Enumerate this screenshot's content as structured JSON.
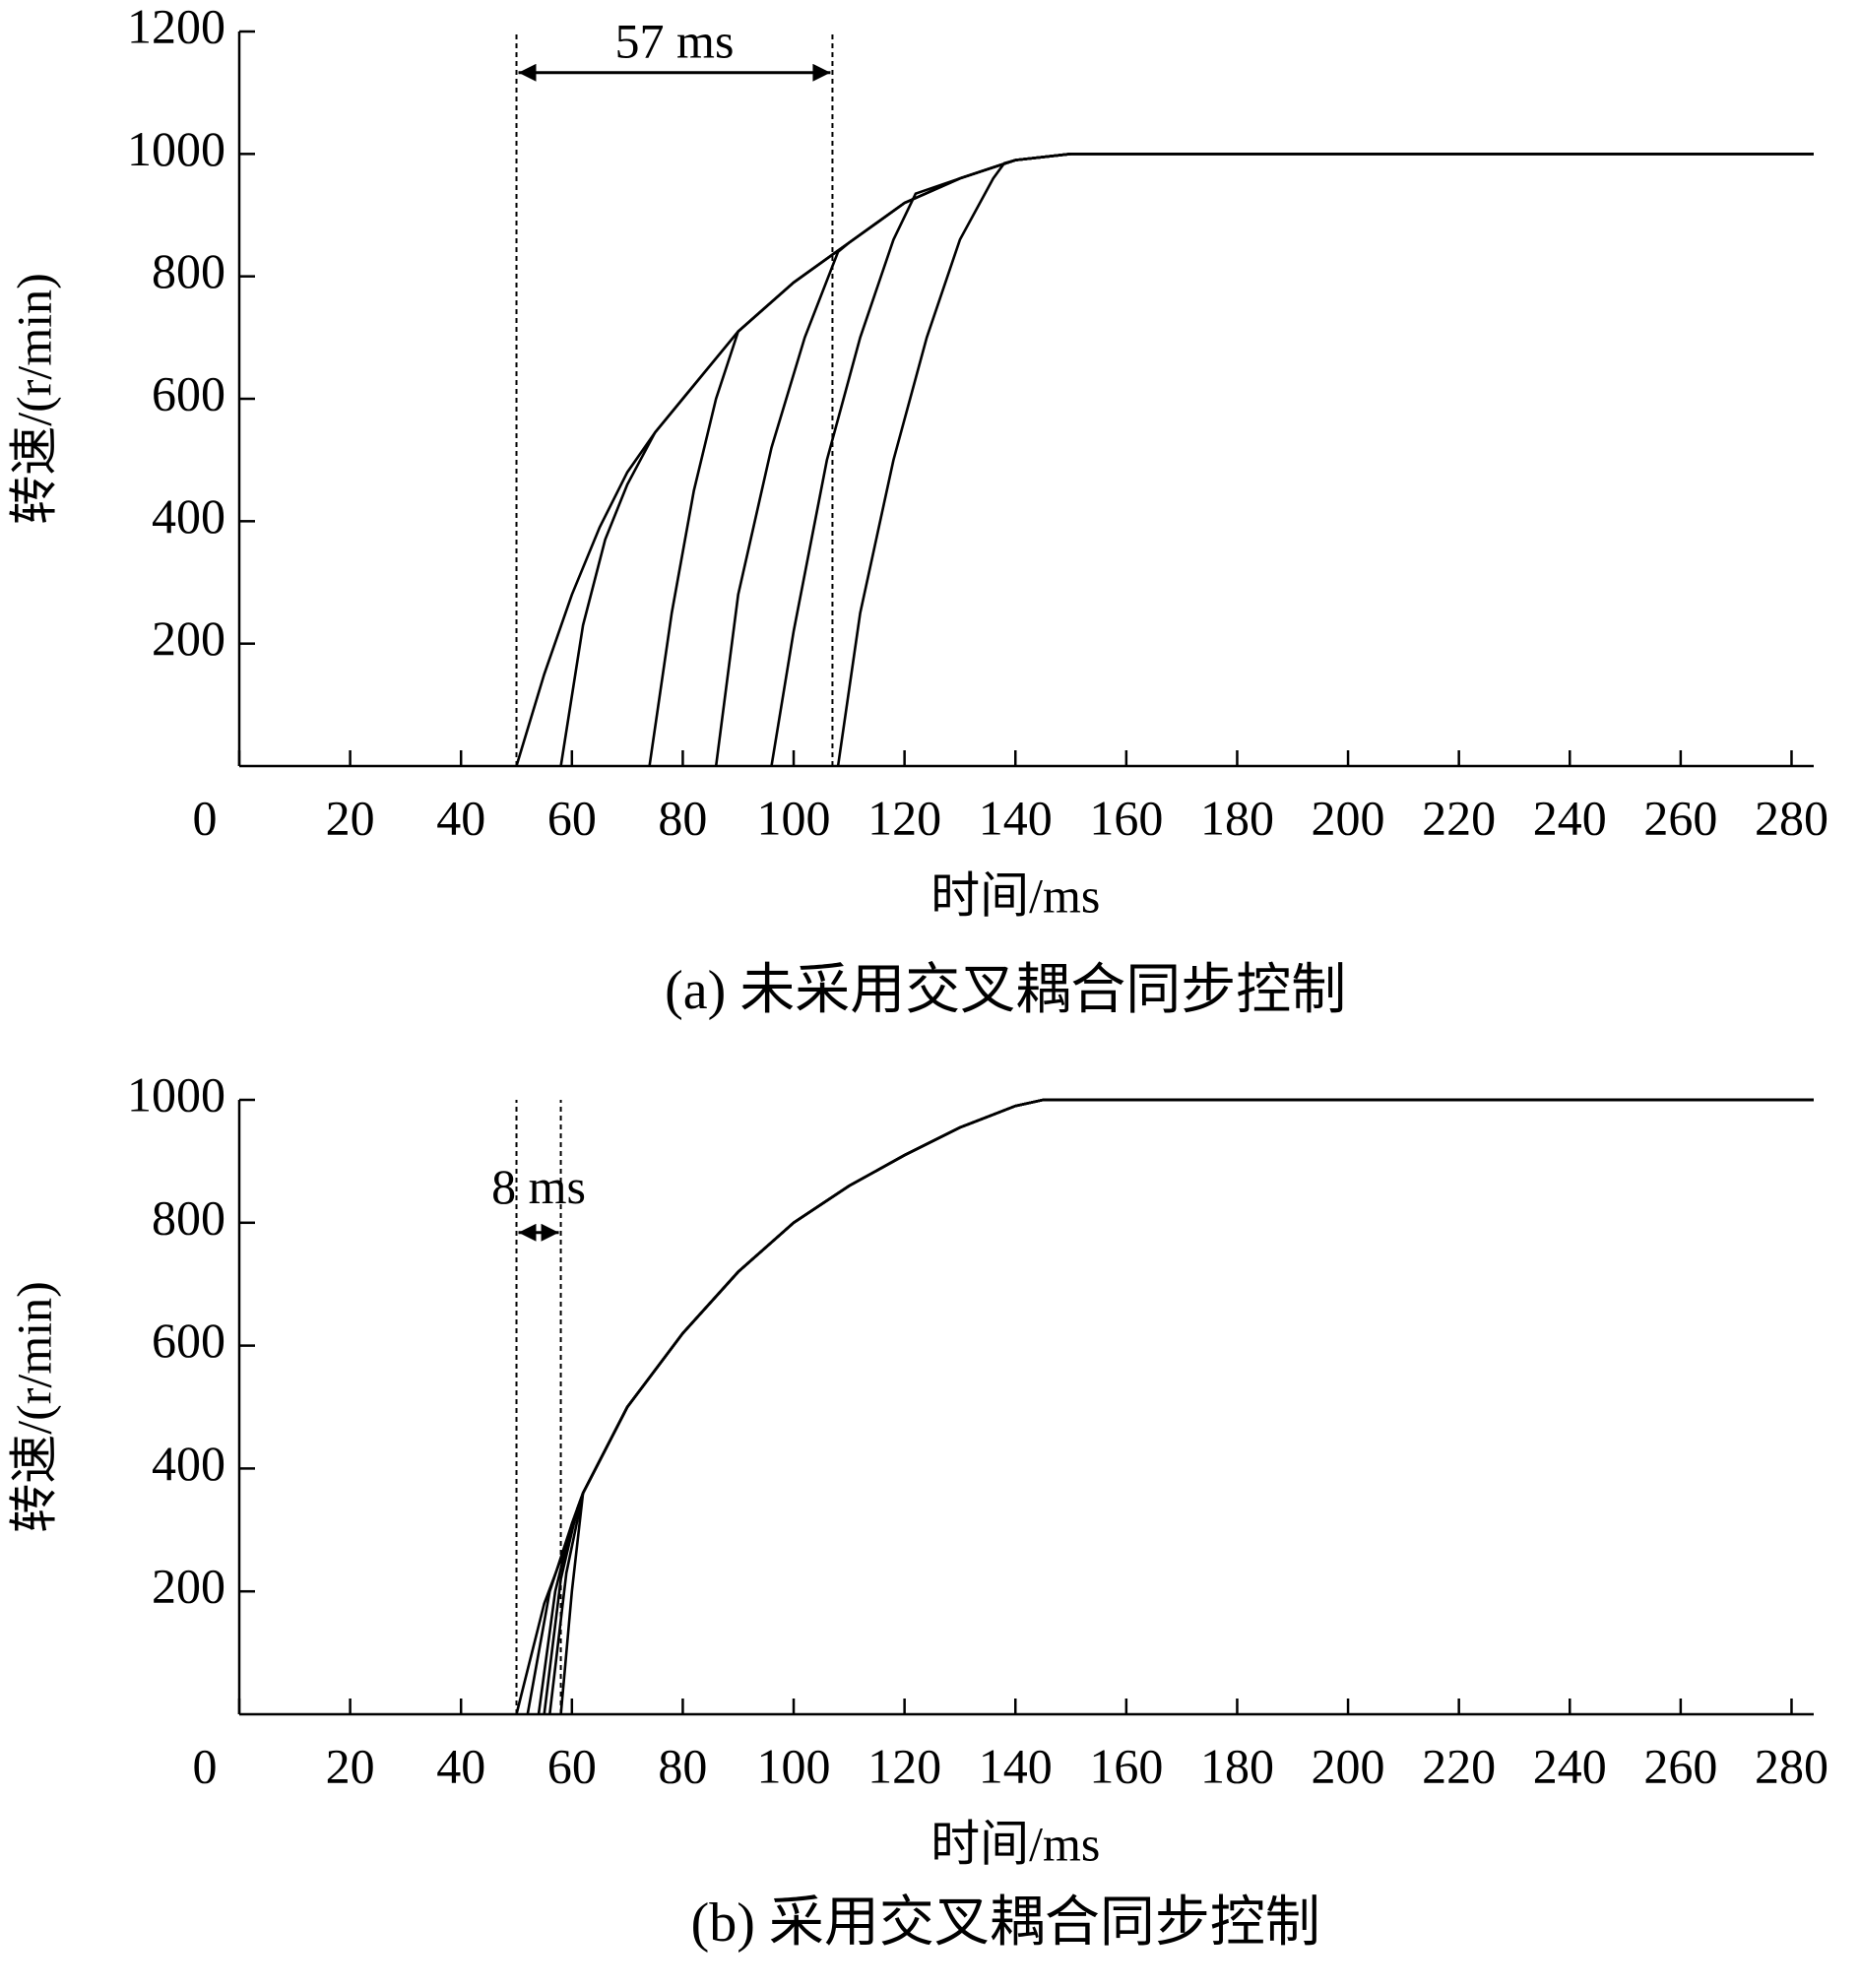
{
  "chart_data": [
    {
      "type": "line",
      "caption": "(a)  未采用交叉耦合同步控制",
      "xlabel": "时间/ms",
      "ylabel": "转速/(r/min)",
      "xlim": [
        0,
        284
      ],
      "ylim": [
        0,
        1200
      ],
      "xticks": [
        0,
        20,
        40,
        60,
        80,
        100,
        120,
        140,
        160,
        180,
        200,
        220,
        240,
        260,
        280
      ],
      "yticks": [
        200,
        400,
        600,
        800,
        1000,
        1200
      ],
      "markers": [
        50,
        107
      ],
      "annotation": "57 ms",
      "series": [
        {
          "color": "#000000",
          "x": [
            50,
            55,
            60,
            65,
            70,
            75,
            80,
            90,
            100,
            110,
            120,
            130,
            140,
            150,
            284
          ],
          "values": [
            0,
            150,
            280,
            390,
            480,
            545,
            600,
            710,
            790,
            855,
            920,
            960,
            990,
            1000,
            1000
          ]
        },
        {
          "color": "#000000",
          "x": [
            58,
            62,
            66,
            70,
            75,
            80,
            90,
            100,
            110,
            120,
            130,
            140,
            150,
            284
          ],
          "values": [
            0,
            230,
            370,
            460,
            545,
            600,
            710,
            790,
            855,
            920,
            960,
            990,
            1000,
            1000
          ]
        },
        {
          "color": "#000000",
          "x": [
            74,
            78,
            82,
            86,
            90,
            100,
            110,
            120,
            130,
            140,
            150,
            284
          ],
          "values": [
            0,
            250,
            450,
            600,
            710,
            790,
            855,
            920,
            960,
            990,
            1000,
            1000
          ]
        },
        {
          "color": "#000000",
          "x": [
            86,
            90,
            96,
            102,
            108,
            110,
            120,
            130,
            140,
            150,
            284
          ],
          "values": [
            0,
            280,
            520,
            700,
            840,
            855,
            920,
            960,
            990,
            1000,
            1000
          ]
        },
        {
          "color": "#000000",
          "x": [
            96,
            100,
            106,
            112,
            118,
            122,
            130,
            140,
            150,
            284
          ],
          "values": [
            0,
            220,
            500,
            700,
            860,
            935,
            960,
            990,
            1000,
            1000
          ]
        },
        {
          "color": "#000000",
          "x": [
            108,
            112,
            118,
            124,
            130,
            136,
            138,
            140,
            150,
            284
          ],
          "values": [
            0,
            250,
            500,
            700,
            860,
            960,
            985,
            990,
            1000,
            1000
          ]
        }
      ]
    },
    {
      "type": "line",
      "caption": "(b)  采用交叉耦合同步控制",
      "xlabel": "时间/ms",
      "ylabel": "转速/(r/min)",
      "xlim": [
        0,
        284
      ],
      "ylim": [
        0,
        1000
      ],
      "xticks": [
        0,
        20,
        40,
        60,
        80,
        100,
        120,
        140,
        160,
        180,
        200,
        220,
        240,
        260,
        280
      ],
      "yticks": [
        200,
        400,
        600,
        800,
        1000
      ],
      "markers": [
        50,
        58
      ],
      "annotation": "8 ms",
      "series": [
        {
          "color": "#000000",
          "x": [
            50,
            55,
            60,
            62,
            70,
            80,
            90,
            100,
            110,
            120,
            130,
            140,
            145,
            284
          ],
          "values": [
            0,
            180,
            300,
            360,
            500,
            620,
            720,
            800,
            860,
            910,
            955,
            990,
            1000,
            1000
          ]
        },
        {
          "color": "#000000",
          "x": [
            52,
            56,
            60,
            62,
            70,
            80,
            90,
            100,
            110,
            120,
            130,
            140,
            145,
            284
          ],
          "values": [
            0,
            200,
            310,
            360,
            500,
            620,
            720,
            800,
            860,
            910,
            955,
            990,
            1000,
            1000
          ]
        },
        {
          "color": "#000000",
          "x": [
            54,
            57,
            60,
            62,
            70,
            80,
            90,
            100,
            110,
            120,
            130,
            140,
            145,
            284
          ],
          "values": [
            0,
            200,
            310,
            360,
            500,
            620,
            720,
            800,
            860,
            910,
            955,
            990,
            1000,
            1000
          ]
        },
        {
          "color": "#000000",
          "x": [
            55,
            58,
            61,
            62,
            70,
            80,
            90,
            100,
            110,
            120,
            130,
            140,
            145,
            284
          ],
          "values": [
            0,
            220,
            335,
            360,
            500,
            620,
            720,
            800,
            860,
            910,
            955,
            990,
            1000,
            1000
          ]
        },
        {
          "color": "#000000",
          "x": [
            56,
            59,
            62,
            70,
            80,
            90,
            100,
            110,
            120,
            130,
            140,
            145,
            284
          ],
          "values": [
            0,
            230,
            360,
            500,
            620,
            720,
            800,
            860,
            910,
            955,
            990,
            1000,
            1000
          ]
        },
        {
          "color": "#000000",
          "x": [
            58,
            60,
            62,
            70,
            80,
            90,
            100,
            110,
            120,
            130,
            140,
            145,
            284
          ],
          "values": [
            0,
            200,
            360,
            500,
            620,
            720,
            800,
            860,
            910,
            955,
            990,
            1000,
            1000
          ]
        }
      ]
    }
  ]
}
